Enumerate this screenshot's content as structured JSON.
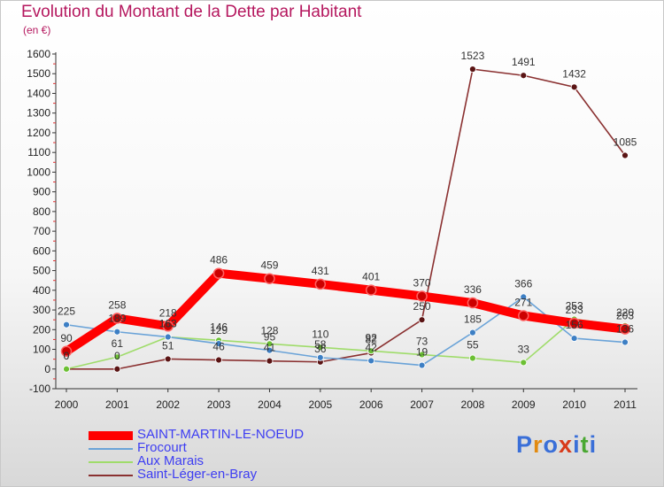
{
  "header": {
    "title": "Evolution du Montant de la Dette par Habitant",
    "unit": "(en €)"
  },
  "brand": {
    "name": "Proxiti",
    "letters": [
      "P",
      "r",
      "o",
      "x",
      "i",
      "t",
      "i"
    ],
    "colors": [
      "#3a6fd8",
      "#e28a10",
      "#3a6fd8",
      "#d83a1a",
      "#3a6fd8",
      "#4aa832",
      "#3a6fd8"
    ]
  },
  "chart_data": {
    "type": "line",
    "x": [
      "2000",
      "2001",
      "2002",
      "2003",
      "2004",
      "2005",
      "2006",
      "2007",
      "2008",
      "2009",
      "2010",
      "2011"
    ],
    "ylim": [
      -100,
      1600
    ],
    "yticks": [
      "-100",
      "0",
      "100",
      "200",
      "300",
      "400",
      "500",
      "600",
      "700",
      "800",
      "900",
      "1000",
      "1100",
      "1200",
      "1300",
      "1400",
      "1500",
      "1600"
    ],
    "grid": false,
    "legend_position": "bottom-left",
    "series": [
      {
        "name": "SAINT-MARTIN-LE-NOEUD",
        "color": "#ff0000",
        "point_color": "#cc0000",
        "emphasis": "bold",
        "values": [
          90,
          258,
          218,
          486,
          459,
          431,
          401,
          370,
          336,
          271,
          233,
          203
        ],
        "labels": [
          "90",
          "258",
          "218",
          "486",
          "459",
          "431",
          "401",
          "370",
          "336",
          "271",
          "233",
          "203"
        ]
      },
      {
        "name": "Frocourt",
        "color": "#6aa3d8",
        "point_color": "#3d7fc4",
        "values": [
          225,
          189,
          163,
          129,
          95,
          58,
          42,
          19,
          185,
          366,
          156,
          136
        ],
        "labels": [
          "225",
          "189",
          "163",
          "129",
          "95",
          "58",
          "42",
          "19",
          "185",
          "366",
          "156",
          "136"
        ]
      },
      {
        "name": "Aux Marais",
        "color": "#9fdc6a",
        "point_color": "#6cc034",
        "values": [
          0,
          61,
          163,
          146,
          128,
          110,
          92,
          73,
          55,
          33,
          253,
          220
        ],
        "labels": [
          "0",
          "61",
          "163",
          "146",
          "128",
          "110",
          "92",
          "73",
          "55",
          "33",
          "253",
          "220"
        ]
      },
      {
        "name": "Saint-Léger-en-Bray",
        "color": "#8a3030",
        "point_color": "#5a1414",
        "values": [
          0,
          0,
          51,
          46,
          41,
          36,
          82,
          250,
          1523,
          1491,
          1432,
          1085
        ],
        "labels": [
          "0",
          "0",
          "51",
          "46",
          "41",
          "36",
          "82",
          "250",
          "1523",
          "1491",
          "1432",
          "1085"
        ]
      }
    ]
  }
}
